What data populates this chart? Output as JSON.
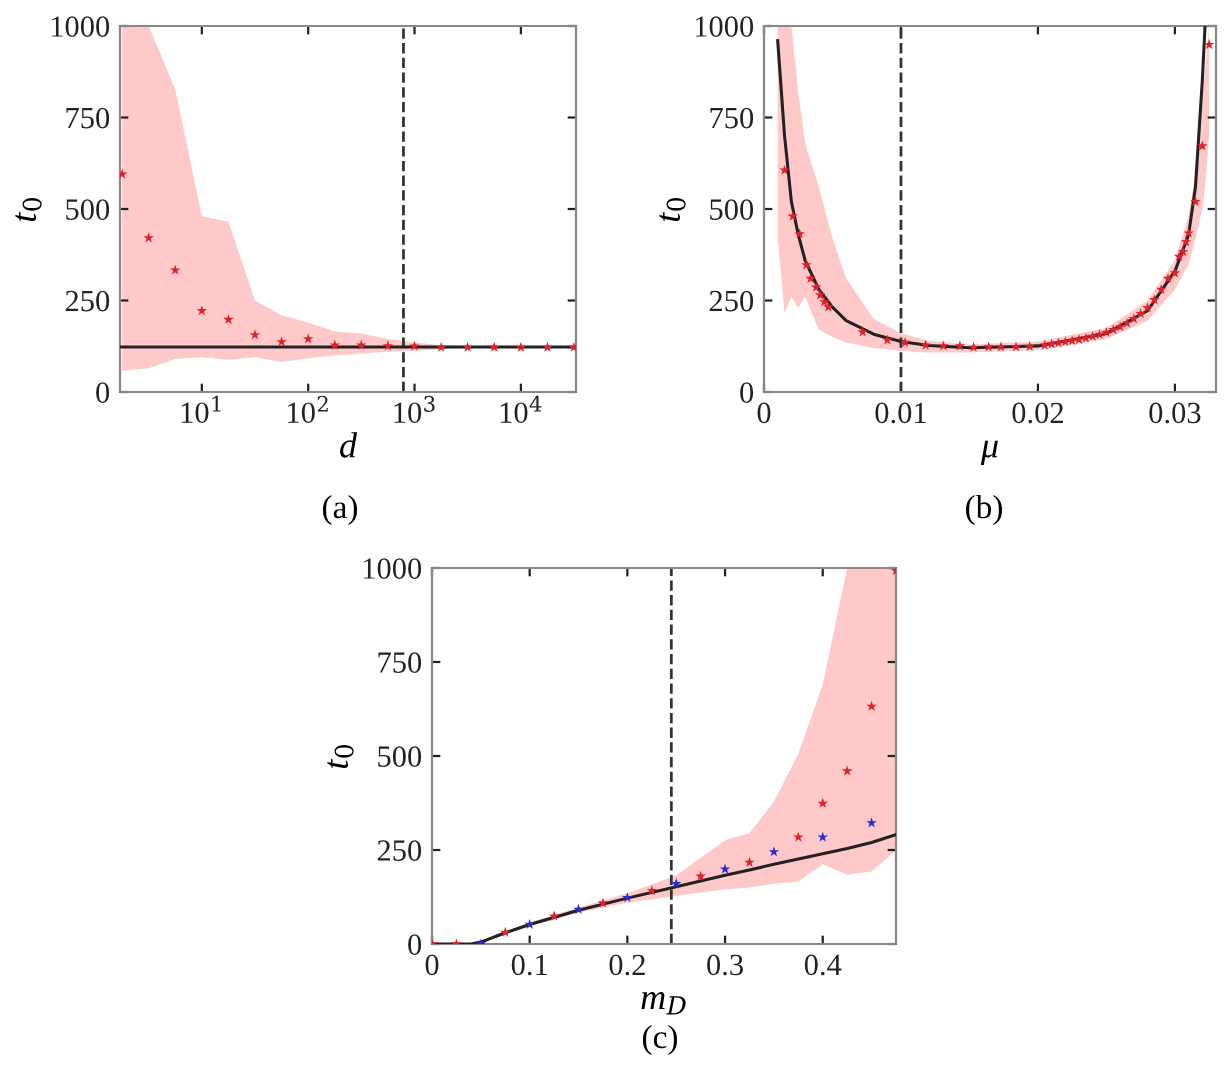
{
  "chart_data": [
    {
      "type": "scatter",
      "xlabel": "d",
      "ylabel": "t$_{0}$",
      "log": "x",
      "xlim": [
        1.7,
        33000
      ],
      "ylim": [
        0,
        1000
      ],
      "xticks": [
        {
          "value": 10,
          "label": "10$^{1}$"
        },
        {
          "value": 100,
          "label": "10$^{2}$"
        },
        {
          "value": 1000,
          "label": "10$^{3}$"
        },
        {
          "value": 10000,
          "label": "10$^{4}$"
        }
      ],
      "yticks": [
        0,
        250,
        500,
        750,
        1000
      ],
      "grid": false,
      "legend": false,
      "annotations": [
        "(a)"
      ],
      "ref_lines": [
        {
          "axis": "x",
          "value": 787,
          "label": null,
          "color": "#333333",
          "line_style": "dashed"
        }
      ],
      "series": [
        {
          "color": "#e0202a",
          "marker": "star",
          "x": [
            1.78,
            3.16,
            5.62,
            10,
            17.8,
            31.6,
            56.2,
            100,
            178,
            316,
            562,
            1000,
            1780,
            3160,
            5620,
            10000,
            17800,
            31600
          ],
          "values": [
            595,
            421,
            333,
            222,
            198,
            156,
            137,
            145,
            128,
            128,
            126,
            125,
            122,
            122,
            122,
            122,
            122,
            122
          ],
          "upper": [
            1000,
            1000,
            827,
            480,
            465,
            250,
            210,
            190,
            165,
            160,
            145,
            135,
            128,
            125,
            125,
            125,
            125,
            125
          ],
          "lower": [
            58,
            65,
            90,
            95,
            88,
            95,
            82,
            92,
            100,
            105,
            110,
            113,
            117,
            120,
            120,
            120,
            120,
            120
          ]
        },
        {
          "type": "line",
          "color": "#222222",
          "marker": "none",
          "line_style": "solid",
          "x": [
            1.7,
            33000
          ],
          "values": [
            123,
            123
          ]
        }
      ]
    },
    {
      "type": "scatter",
      "xlabel": "μ",
      "ylabel": "t$_{0}$",
      "xlim": [
        0,
        0.033
      ],
      "ylim": [
        0,
        1000
      ],
      "xticks": [
        0,
        0.01,
        0.02,
        0.03
      ],
      "yticks": [
        0,
        250,
        500,
        750,
        1000
      ],
      "grid": false,
      "legend": false,
      "annotations": [
        "(b)"
      ],
      "ref_lines": [
        {
          "axis": "x",
          "value": 0.01,
          "label": null,
          "color": "#333333",
          "line_style": "dashed"
        }
      ],
      "series": [
        {
          "type": "line",
          "color": "#222222",
          "marker": "none",
          "line_style": "solid",
          "x": [
            0.001,
            0.0015,
            0.002,
            0.0025,
            0.003,
            0.004,
            0.005,
            0.006,
            0.008,
            0.01,
            0.012,
            0.015,
            0.02,
            0.025,
            0.028,
            0.03,
            0.031,
            0.0315,
            0.032,
            0.0322,
            0.0325
          ],
          "values": [
            960,
            700,
            520,
            430,
            360,
            280,
            232,
            195,
            158,
            138,
            127,
            121,
            126,
            160,
            222,
            330,
            430,
            560,
            850,
            1000,
            null
          ],
          "upper": [
            1000,
            1000,
            1000,
            820,
            680,
            560,
            420,
            310,
            200,
            160,
            140,
            130,
            138,
            175,
            250,
            360,
            480,
            600,
            800,
            880,
            1000
          ],
          "lower": [
            420,
            215,
            260,
            230,
            260,
            170,
            150,
            135,
            120,
            112,
            108,
            108,
            115,
            145,
            195,
            280,
            350,
            420,
            500,
            560,
            700
          ]
        },
        {
          "color": "#e0202a",
          "marker": "star",
          "x": [
            0.0015,
            0.0021,
            0.0026,
            0.0031,
            0.0034,
            0.0038,
            0.0041,
            0.0044,
            0.0047,
            0.0072,
            0.009,
            0.0103,
            0.0118,
            0.0131,
            0.0143,
            0.0153,
            0.0164,
            0.0173,
            0.0184,
            0.0194,
            0.0205,
            0.021,
            0.0215,
            0.022,
            0.0225,
            0.023,
            0.0235,
            0.024,
            0.0245,
            0.025,
            0.0255,
            0.026,
            0.0265,
            0.027,
            0.0275,
            0.028,
            0.0285,
            0.029,
            0.0295,
            0.03,
            0.0303,
            0.0306,
            0.0308,
            0.031,
            0.0315,
            0.032,
            0.0325
          ],
          "values": [
            606,
            480,
            432,
            347,
            310,
            286,
            265,
            246,
            232,
            164,
            142,
            135,
            128,
            126,
            126,
            122,
            123,
            123,
            123,
            124,
            128,
            131,
            134,
            137,
            140,
            143,
            147,
            152,
            157,
            163,
            170,
            178,
            188,
            200,
            214,
            230,
            252,
            280,
            310,
            325,
            370,
            383,
            410,
            434,
            520,
            672,
            949
          ]
        }
      ]
    },
    {
      "type": "scatter",
      "xlabel": "m$_{D}$",
      "ylabel": "t$_{0}$",
      "xlim": [
        0,
        0.475
      ],
      "ylim": [
        0,
        1000
      ],
      "xticks": [
        0,
        0.1,
        0.2,
        0.3,
        0.4
      ],
      "yticks": [
        0,
        250,
        500,
        750,
        1000
      ],
      "grid": false,
      "legend": false,
      "annotations": [
        "(c)"
      ],
      "ref_lines": [
        {
          "axis": "x",
          "value": 0.245,
          "label": null,
          "color": "#333333",
          "line_style": "dashed"
        }
      ],
      "series": [
        {
          "type": "line",
          "color": "#222222",
          "marker": "none",
          "line_style": "solid",
          "x": [
            0,
            0.04,
            0.05,
            0.075,
            0.1,
            0.15,
            0.2,
            0.25,
            0.3,
            0.325,
            0.35,
            0.375,
            0.4,
            0.425,
            0.45,
            0.475
          ],
          "values": [
            0,
            0,
            5,
            30,
            52,
            90,
            122,
            152,
            183,
            197,
            212,
            226,
            240,
            254,
            270,
            291
          ],
          "upper": [
            0,
            0,
            6,
            33,
            57,
            97,
            135,
            182,
            276,
            295,
            378,
            506,
            690,
            1000,
            1000,
            1000
          ],
          "lower": [
            0,
            0,
            4,
            27,
            47,
            83,
            110,
            128,
            145,
            150,
            160,
            166,
            212,
            184,
            193,
            249
          ]
        },
        {
          "color": "#e0202a",
          "marker": "star",
          "x": [
            0,
            0.025,
            0.075,
            0.125,
            0.175,
            0.225,
            0.275,
            0.325,
            0.35,
            0.375,
            0.4,
            0.425,
            0.45,
            0.475
          ],
          "values": [
            0,
            0,
            31,
            74,
            109,
            142,
            180,
            217,
            null,
            284,
            374,
            460,
            632,
            993
          ]
        },
        {
          "color": "#2a2ad0",
          "marker": "star",
          "x": [
            0.05,
            0.1,
            0.15,
            0.2,
            0.25,
            0.3,
            0.35,
            0.4,
            0.45
          ],
          "values": [
            0,
            52,
            92,
            123,
            160,
            199,
            245,
            284,
            322
          ]
        }
      ]
    }
  ]
}
